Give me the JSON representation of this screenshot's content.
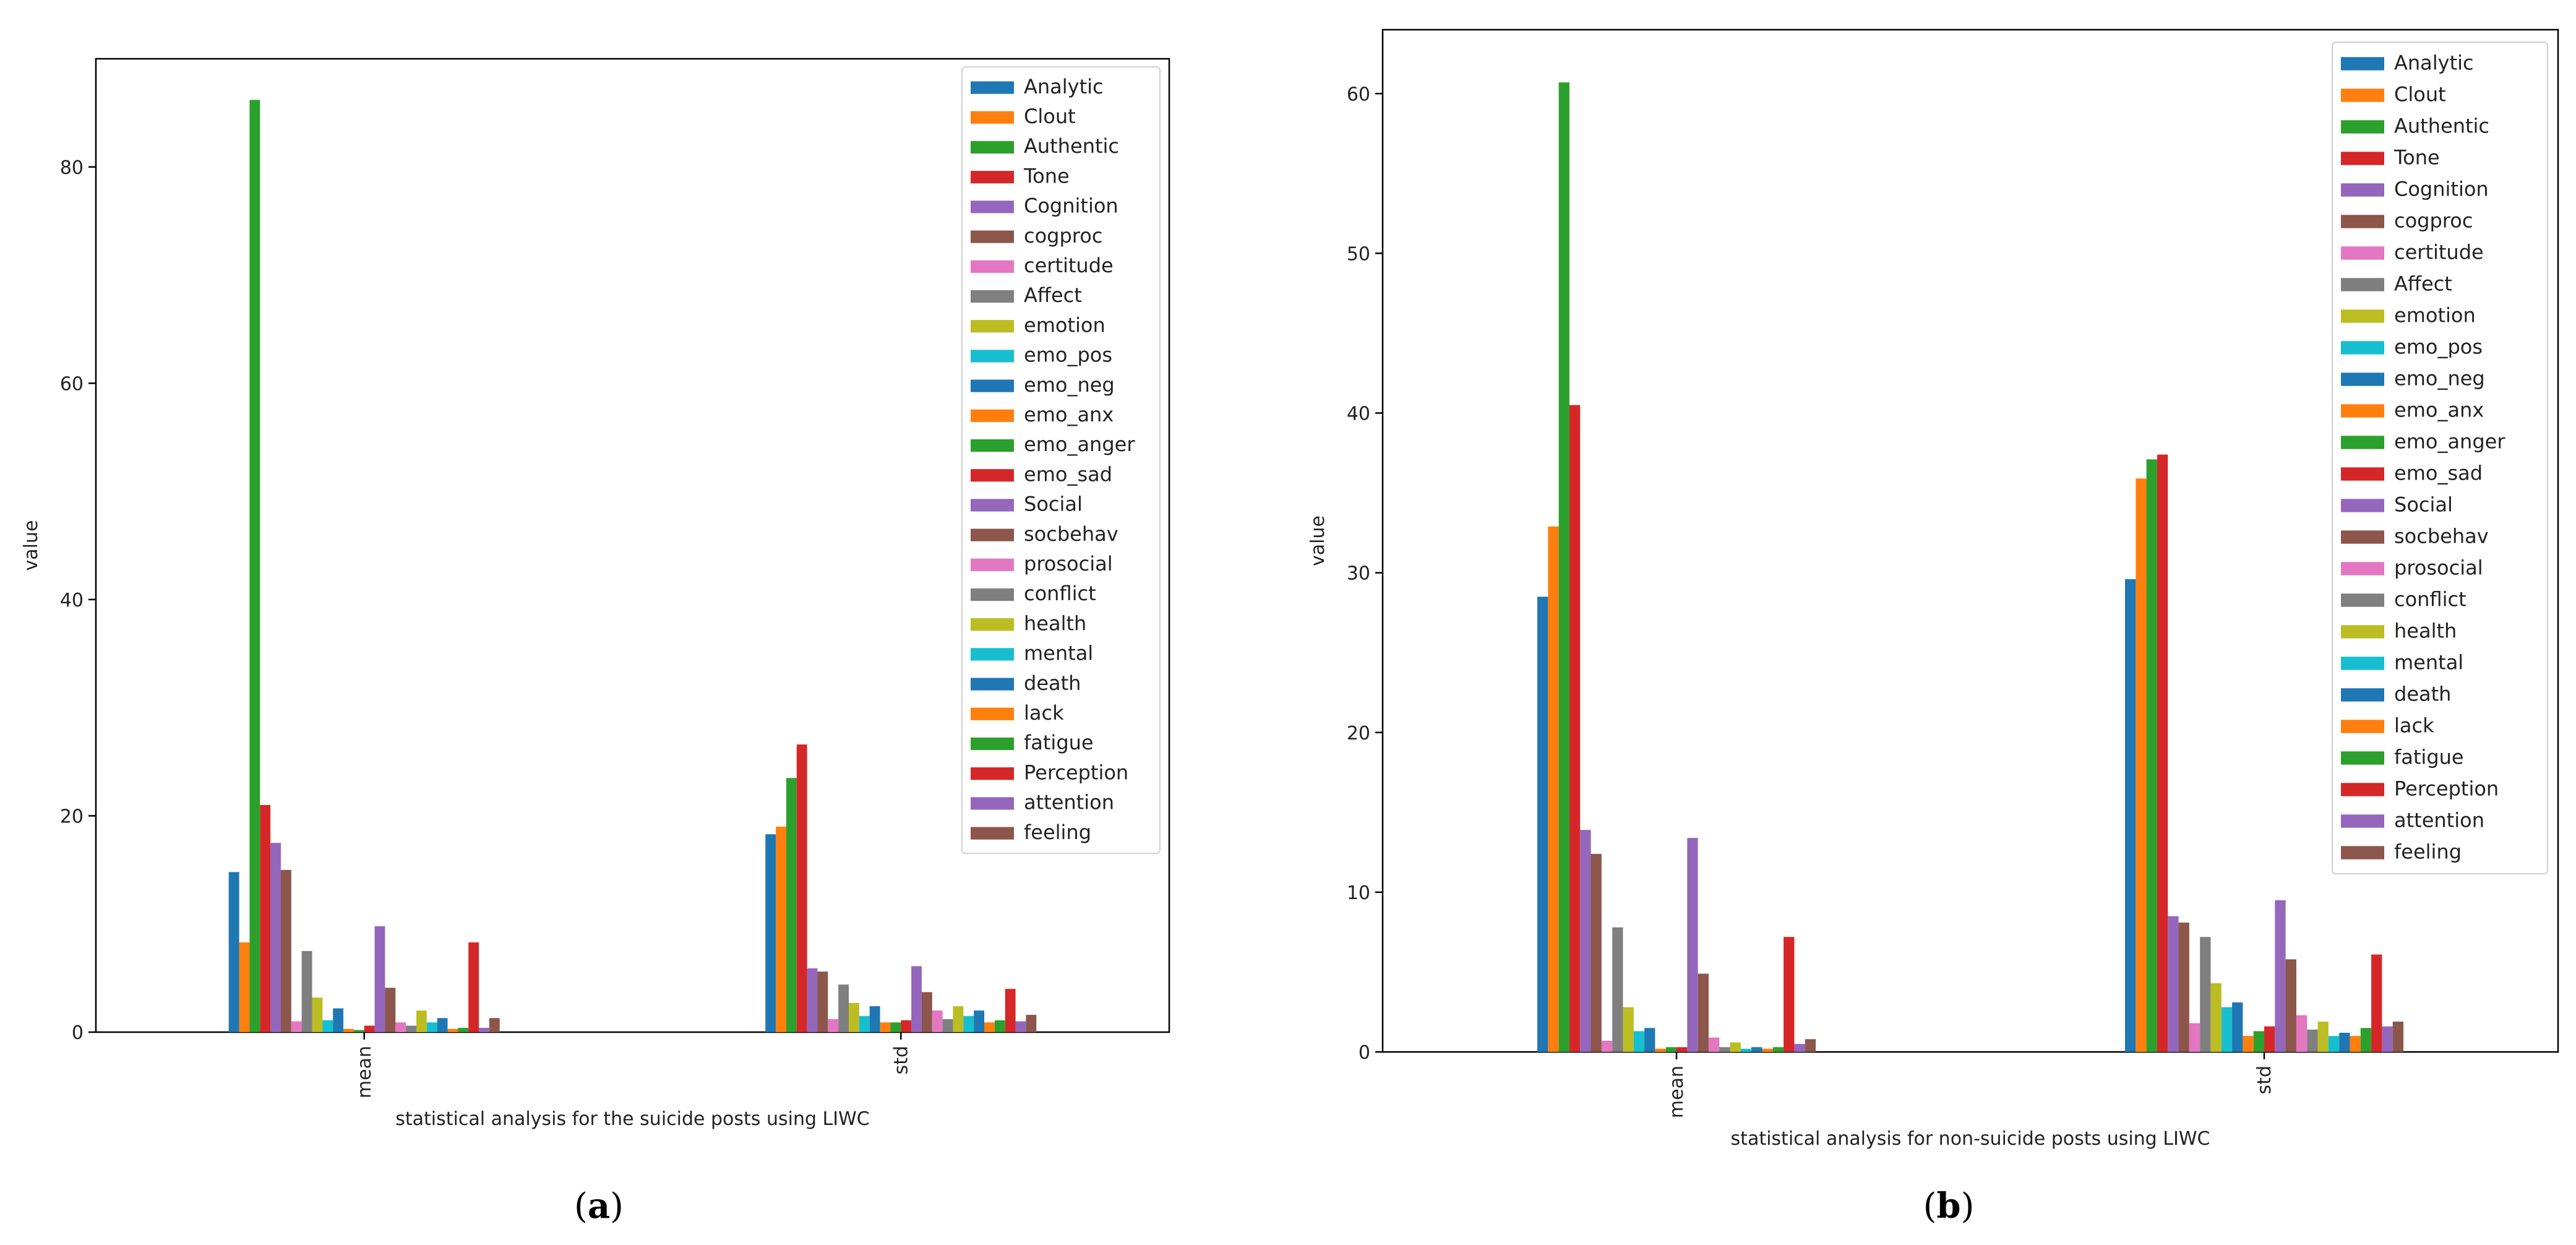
{
  "figure": {
    "panel_a_label": "a",
    "panel_b_label": "b"
  },
  "chart_data": [
    {
      "type": "bar",
      "id": "a",
      "title": "",
      "xlabel": "statistical analysis for the suicide posts using LIWC",
      "ylabel": "value",
      "categories": [
        "mean",
        "std"
      ],
      "ylim": [
        0,
        90
      ],
      "yticks": [
        0,
        20,
        40,
        60,
        80
      ],
      "legend_position": "top-right",
      "grid": false,
      "series": [
        {
          "name": "Analytic",
          "color": "#1f77b4",
          "values": [
            14.8,
            18.3
          ]
        },
        {
          "name": "Clout",
          "color": "#ff7f0e",
          "values": [
            8.3,
            19.0
          ]
        },
        {
          "name": "Authentic",
          "color": "#2ca02c",
          "values": [
            86.2,
            23.5
          ]
        },
        {
          "name": "Tone",
          "color": "#d62728",
          "values": [
            21.0,
            26.6
          ]
        },
        {
          "name": "Cognition",
          "color": "#9467bd",
          "values": [
            17.5,
            5.9
          ]
        },
        {
          "name": "cogproc",
          "color": "#8c564b",
          "values": [
            15.0,
            5.6
          ]
        },
        {
          "name": "certitude",
          "color": "#e377c2",
          "values": [
            1.0,
            1.2
          ]
        },
        {
          "name": "Affect",
          "color": "#7f7f7f",
          "values": [
            7.5,
            4.4
          ]
        },
        {
          "name": "emotion",
          "color": "#bcbd22",
          "values": [
            3.2,
            2.7
          ]
        },
        {
          "name": "emo_pos",
          "color": "#17becf",
          "values": [
            1.1,
            1.5
          ]
        },
        {
          "name": "emo_neg",
          "color": "#1f77b4",
          "values": [
            2.2,
            2.4
          ]
        },
        {
          "name": "emo_anx",
          "color": "#ff7f0e",
          "values": [
            0.3,
            0.9
          ]
        },
        {
          "name": "emo_anger",
          "color": "#2ca02c",
          "values": [
            0.2,
            0.9
          ]
        },
        {
          "name": "emo_sad",
          "color": "#d62728",
          "values": [
            0.6,
            1.1
          ]
        },
        {
          "name": "Social",
          "color": "#9467bd",
          "values": [
            9.8,
            6.1
          ]
        },
        {
          "name": "socbehav",
          "color": "#8c564b",
          "values": [
            4.1,
            3.7
          ]
        },
        {
          "name": "prosocial",
          "color": "#e377c2",
          "values": [
            0.9,
            2.0
          ]
        },
        {
          "name": "conflict",
          "color": "#7f7f7f",
          "values": [
            0.6,
            1.2
          ]
        },
        {
          "name": "health",
          "color": "#bcbd22",
          "values": [
            2.0,
            2.4
          ]
        },
        {
          "name": "mental",
          "color": "#17becf",
          "values": [
            0.9,
            1.5
          ]
        },
        {
          "name": "death",
          "color": "#1f77b4",
          "values": [
            1.3,
            2.0
          ]
        },
        {
          "name": "lack",
          "color": "#ff7f0e",
          "values": [
            0.3,
            0.9
          ]
        },
        {
          "name": "fatigue",
          "color": "#2ca02c",
          "values": [
            0.4,
            1.1
          ]
        },
        {
          "name": "Perception",
          "color": "#d62728",
          "values": [
            8.3,
            4.0
          ]
        },
        {
          "name": "attention",
          "color": "#9467bd",
          "values": [
            0.4,
            1.0
          ]
        },
        {
          "name": "feeling",
          "color": "#8c564b",
          "values": [
            1.3,
            1.6
          ]
        }
      ]
    },
    {
      "type": "bar",
      "id": "b",
      "title": "",
      "xlabel": "statistical analysis for non-suicide posts using LIWC",
      "ylabel": "value",
      "categories": [
        "mean",
        "std"
      ],
      "ylim": [
        0,
        64
      ],
      "yticks": [
        0,
        10,
        20,
        30,
        40,
        50,
        60
      ],
      "legend_position": "top-right",
      "grid": false,
      "series": [
        {
          "name": "Analytic",
          "color": "#1f77b4",
          "values": [
            28.5,
            29.6
          ]
        },
        {
          "name": "Clout",
          "color": "#ff7f0e",
          "values": [
            32.9,
            35.9
          ]
        },
        {
          "name": "Authentic",
          "color": "#2ca02c",
          "values": [
            60.7,
            37.1
          ]
        },
        {
          "name": "Tone",
          "color": "#d62728",
          "values": [
            40.5,
            37.4
          ]
        },
        {
          "name": "Cognition",
          "color": "#9467bd",
          "values": [
            13.9,
            8.5
          ]
        },
        {
          "name": "cogproc",
          "color": "#8c564b",
          "values": [
            12.4,
            8.1
          ]
        },
        {
          "name": "certitude",
          "color": "#e377c2",
          "values": [
            0.7,
            1.8
          ]
        },
        {
          "name": "Affect",
          "color": "#7f7f7f",
          "values": [
            7.8,
            7.2
          ]
        },
        {
          "name": "emotion",
          "color": "#bcbd22",
          "values": [
            2.8,
            4.3
          ]
        },
        {
          "name": "emo_pos",
          "color": "#17becf",
          "values": [
            1.3,
            2.8
          ]
        },
        {
          "name": "emo_neg",
          "color": "#1f77b4",
          "values": [
            1.5,
            3.1
          ]
        },
        {
          "name": "emo_anx",
          "color": "#ff7f0e",
          "values": [
            0.2,
            1.0
          ]
        },
        {
          "name": "emo_anger",
          "color": "#2ca02c",
          "values": [
            0.3,
            1.3
          ]
        },
        {
          "name": "emo_sad",
          "color": "#d62728",
          "values": [
            0.3,
            1.6
          ]
        },
        {
          "name": "Social",
          "color": "#9467bd",
          "values": [
            13.4,
            9.5
          ]
        },
        {
          "name": "socbehav",
          "color": "#8c564b",
          "values": [
            4.9,
            5.8
          ]
        },
        {
          "name": "prosocial",
          "color": "#e377c2",
          "values": [
            0.9,
            2.3
          ]
        },
        {
          "name": "conflict",
          "color": "#7f7f7f",
          "values": [
            0.3,
            1.4
          ]
        },
        {
          "name": "health",
          "color": "#bcbd22",
          "values": [
            0.6,
            1.9
          ]
        },
        {
          "name": "mental",
          "color": "#17becf",
          "values": [
            0.2,
            1.0
          ]
        },
        {
          "name": "death",
          "color": "#1f77b4",
          "values": [
            0.3,
            1.2
          ]
        },
        {
          "name": "lack",
          "color": "#ff7f0e",
          "values": [
            0.2,
            1.0
          ]
        },
        {
          "name": "fatigue",
          "color": "#2ca02c",
          "values": [
            0.3,
            1.5
          ]
        },
        {
          "name": "Perception",
          "color": "#d62728",
          "values": [
            7.2,
            6.1
          ]
        },
        {
          "name": "attention",
          "color": "#9467bd",
          "values": [
            0.5,
            1.6
          ]
        },
        {
          "name": "feeling",
          "color": "#8c564b",
          "values": [
            0.8,
            1.9
          ]
        }
      ]
    }
  ]
}
